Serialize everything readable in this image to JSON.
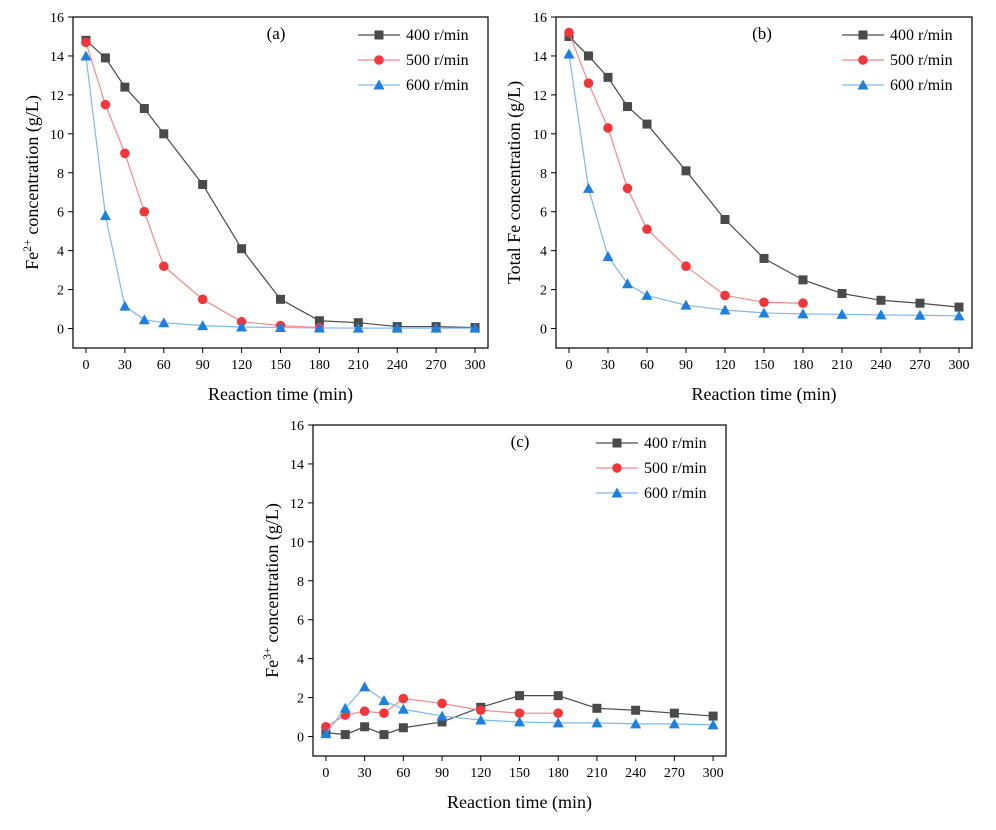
{
  "colors": {
    "series_400": "#4a4a4a",
    "series_500": "#f0383c",
    "series_600": "#1f7fdc",
    "line_600": "#7fb8f0",
    "line_500": "#f08a8c",
    "axis": "#000000"
  },
  "chart_data": [
    {
      "panel": "(a)",
      "type": "line",
      "xlabel": "Reaction time (min)",
      "ylabel_base": "Fe",
      "ylabel_sup": "2+",
      "ylabel_rest": " concentration (g/L)",
      "xlim": [
        -10,
        310
      ],
      "ylim": [
        -1,
        16
      ],
      "xticks": [
        0,
        30,
        60,
        90,
        120,
        150,
        180,
        210,
        240,
        270,
        300
      ],
      "yticks": [
        0,
        2,
        4,
        6,
        8,
        10,
        12,
        14,
        16
      ],
      "legend_position": "top-right",
      "series": [
        {
          "name": "400 r/min",
          "marker": "square",
          "colorKey": "series_400",
          "x": [
            0,
            15,
            30,
            45,
            60,
            90,
            120,
            150,
            180,
            210,
            240,
            270,
            300
          ],
          "y": [
            14.8,
            13.9,
            12.4,
            11.3,
            10.0,
            7.4,
            4.1,
            1.5,
            0.4,
            0.3,
            0.1,
            0.1,
            0.05
          ]
        },
        {
          "name": "500 r/min",
          "marker": "circle",
          "colorKey": "series_500",
          "x": [
            0,
            15,
            30,
            45,
            60,
            90,
            120,
            150,
            180
          ],
          "y": [
            14.7,
            11.5,
            9.0,
            6.0,
            3.2,
            1.5,
            0.35,
            0.15,
            0.05
          ]
        },
        {
          "name": "600 r/min",
          "marker": "triangle",
          "colorKey": "series_600",
          "x": [
            0,
            15,
            30,
            45,
            60,
            90,
            120,
            150,
            180,
            210,
            240,
            270,
            300
          ],
          "y": [
            14.0,
            5.8,
            1.15,
            0.45,
            0.3,
            0.15,
            0.08,
            0.05,
            0.03,
            0.02,
            0.02,
            0.02,
            0.02
          ]
        }
      ]
    },
    {
      "panel": "(b)",
      "type": "line",
      "xlabel": "Reaction time (min)",
      "ylabel_base": "Total Fe concentration (g/L)",
      "ylabel_sup": "",
      "ylabel_rest": "",
      "xlim": [
        -10,
        310
      ],
      "ylim": [
        -1,
        16
      ],
      "xticks": [
        0,
        30,
        60,
        90,
        120,
        150,
        180,
        210,
        240,
        270,
        300
      ],
      "yticks": [
        0,
        2,
        4,
        6,
        8,
        10,
        12,
        14,
        16
      ],
      "legend_position": "top-right",
      "series": [
        {
          "name": "400 r/min",
          "marker": "square",
          "colorKey": "series_400",
          "x": [
            0,
            15,
            30,
            45,
            60,
            90,
            120,
            150,
            180,
            210,
            240,
            270,
            300
          ],
          "y": [
            15.0,
            14.0,
            12.9,
            11.4,
            10.5,
            8.1,
            5.6,
            3.6,
            2.5,
            1.8,
            1.45,
            1.3,
            1.1
          ]
        },
        {
          "name": "500 r/min",
          "marker": "circle",
          "colorKey": "series_500",
          "x": [
            0,
            15,
            30,
            45,
            60,
            90,
            120,
            150,
            180
          ],
          "y": [
            15.2,
            12.6,
            10.3,
            7.2,
            5.1,
            3.2,
            1.7,
            1.35,
            1.3
          ]
        },
        {
          "name": "600 r/min",
          "marker": "triangle",
          "colorKey": "series_600",
          "x": [
            0,
            15,
            30,
            45,
            60,
            90,
            120,
            150,
            180,
            210,
            240,
            270,
            300
          ],
          "y": [
            14.1,
            7.2,
            3.7,
            2.3,
            1.7,
            1.2,
            0.95,
            0.8,
            0.75,
            0.73,
            0.7,
            0.68,
            0.65
          ]
        }
      ]
    },
    {
      "panel": "(c)",
      "type": "line",
      "xlabel": "Reaction time (min)",
      "ylabel_base": "Fe",
      "ylabel_sup": "3+",
      "ylabel_rest": " concentration (g/L)",
      "xlim": [
        -10,
        310
      ],
      "ylim": [
        -1,
        16
      ],
      "xticks": [
        0,
        30,
        60,
        90,
        120,
        150,
        180,
        210,
        240,
        270,
        300
      ],
      "yticks": [
        0,
        2,
        4,
        6,
        8,
        10,
        12,
        14,
        16
      ],
      "legend_position": "top-right",
      "series": [
        {
          "name": "400 r/min",
          "marker": "square",
          "colorKey": "series_400",
          "x": [
            0,
            15,
            30,
            45,
            60,
            90,
            120,
            150,
            180,
            210,
            240,
            270,
            300
          ],
          "y": [
            0.2,
            0.1,
            0.5,
            0.1,
            0.45,
            0.75,
            1.5,
            2.1,
            2.1,
            1.45,
            1.35,
            1.2,
            1.05
          ]
        },
        {
          "name": "500 r/min",
          "marker": "circle",
          "colorKey": "series_500",
          "x": [
            0,
            15,
            30,
            45,
            60,
            90,
            120,
            150,
            180
          ],
          "y": [
            0.5,
            1.1,
            1.3,
            1.2,
            1.95,
            1.7,
            1.35,
            1.2,
            1.2
          ]
        },
        {
          "name": "600 r/min",
          "marker": "triangle",
          "colorKey": "series_600",
          "x": [
            0,
            15,
            30,
            45,
            60,
            90,
            120,
            150,
            180,
            210,
            240,
            270,
            300
          ],
          "y": [
            0.15,
            1.45,
            2.55,
            1.85,
            1.4,
            1.05,
            0.85,
            0.75,
            0.7,
            0.7,
            0.65,
            0.65,
            0.6
          ]
        }
      ]
    }
  ]
}
